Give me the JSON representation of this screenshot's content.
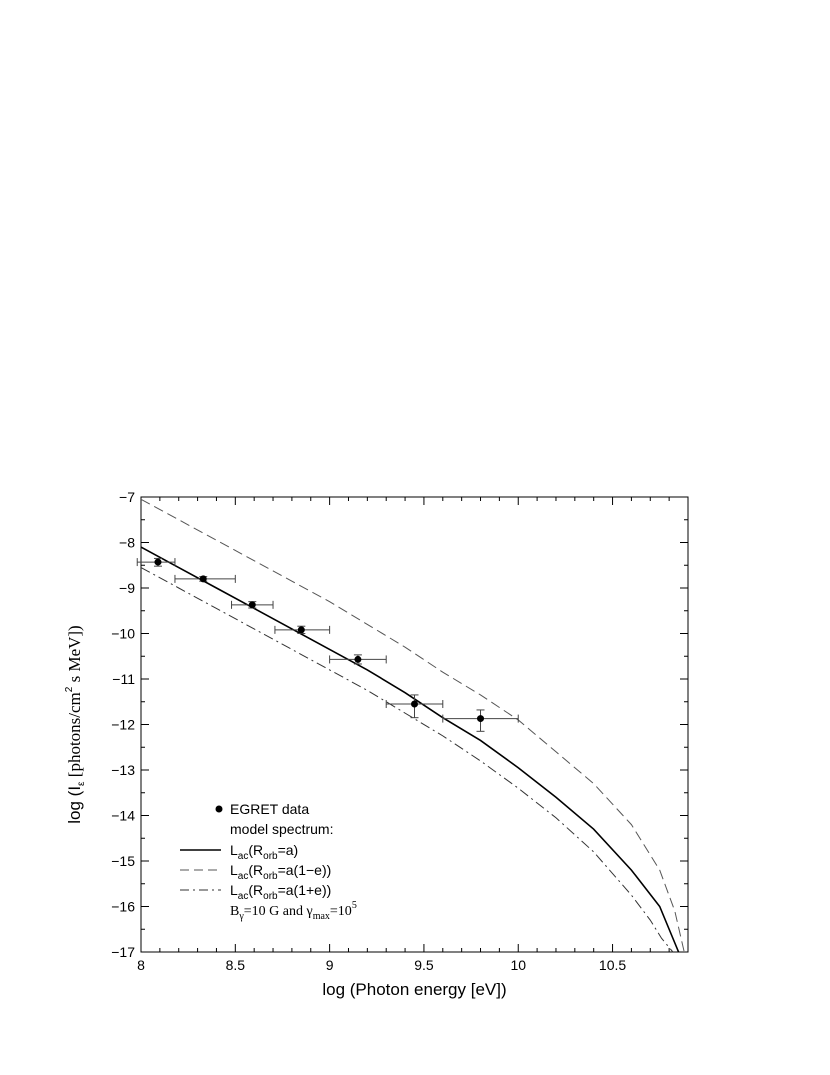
{
  "chart_data": {
    "type": "line",
    "title": "",
    "xlabel": "log (Photon energy [eV])",
    "ylabel": "log (Iε [photons/cm2 s MeV])",
    "xlim": [
      8,
      10.9
    ],
    "ylim": [
      -17,
      -7
    ],
    "xticks": [
      8,
      8.5,
      9,
      9.5,
      10,
      10.5
    ],
    "xtick_labels": [
      "8",
      "8.5",
      "9",
      "9.5",
      "10",
      "10.5"
    ],
    "yticks": [
      -17,
      -16,
      -15,
      -14,
      -13,
      -12,
      -11,
      -10,
      -9,
      -8,
      -7
    ],
    "ytick_labels": [
      "−17",
      "−16",
      "−15",
      "−14",
      "−13",
      "−12",
      "−11",
      "−10",
      "−9",
      "−8",
      "−7"
    ],
    "grid": false,
    "legend_position": "bottom-left",
    "ylabel_parts": {
      "prefix": "log (I",
      "sub": "ε",
      "mid": " [photons/cm",
      "sup": "2",
      "suffix": " s MeV])"
    },
    "points": {
      "name": "EGRET data",
      "x": [
        8.09,
        8.33,
        8.59,
        8.85,
        9.15,
        9.45,
        9.8
      ],
      "y": [
        -8.43,
        -8.8,
        -9.37,
        -9.92,
        -10.57,
        -11.55,
        -11.87
      ],
      "x_err": [
        [
          7.98,
          8.18
        ],
        [
          8.18,
          8.5
        ],
        [
          8.48,
          8.7
        ],
        [
          8.71,
          9.0
        ],
        [
          9.0,
          9.3
        ],
        [
          9.3,
          9.6
        ],
        [
          9.6,
          10.0
        ]
      ],
      "y_err": [
        [
          -8.35,
          -8.52
        ],
        [
          -8.75,
          -8.85
        ],
        [
          -9.3,
          -9.44
        ],
        [
          -9.84,
          -10.0
        ],
        [
          -10.47,
          -10.67
        ],
        [
          -11.35,
          -11.85
        ],
        [
          -11.68,
          -12.15
        ]
      ]
    },
    "series": [
      {
        "name": "Lac(Rorb=a)",
        "style": "solid",
        "x": [
          8.0,
          8.2,
          8.4,
          8.6,
          8.8,
          9.0,
          9.2,
          9.4,
          9.6,
          9.8,
          10.0,
          10.2,
          10.4,
          10.6,
          10.75,
          10.8,
          10.85
        ],
        "y": [
          -8.1,
          -8.55,
          -9.0,
          -9.45,
          -9.9,
          -10.35,
          -10.8,
          -11.3,
          -11.85,
          -12.35,
          -12.95,
          -13.6,
          -14.3,
          -15.2,
          -16.0,
          -16.5,
          -17.0
        ]
      },
      {
        "name": "Lac(Rorb=a(1−e))",
        "style": "dashed",
        "x": [
          8.0,
          8.2,
          8.4,
          8.6,
          8.8,
          9.0,
          9.2,
          9.4,
          9.6,
          9.8,
          10.0,
          10.2,
          10.4,
          10.6,
          10.75,
          10.83,
          10.88
        ],
        "y": [
          -7.05,
          -7.5,
          -7.95,
          -8.4,
          -8.85,
          -9.3,
          -9.8,
          -10.3,
          -10.85,
          -11.35,
          -11.9,
          -12.6,
          -13.3,
          -14.2,
          -15.2,
          -16.1,
          -17.0
        ]
      },
      {
        "name": "Lac(Rorb=a(1+e))",
        "style": "dashdot",
        "x": [
          8.0,
          8.2,
          8.4,
          8.6,
          8.8,
          9.0,
          9.2,
          9.4,
          9.6,
          9.8,
          10.0,
          10.2,
          10.4,
          10.6,
          10.7,
          10.76,
          10.82
        ],
        "y": [
          -8.55,
          -9.0,
          -9.45,
          -9.9,
          -10.35,
          -10.8,
          -11.25,
          -11.75,
          -12.25,
          -12.8,
          -13.4,
          -14.05,
          -14.8,
          -15.75,
          -16.3,
          -16.7,
          -17.0
        ]
      }
    ],
    "legend": {
      "points_label": "EGRET data",
      "header": "model spectrum:",
      "entries": [
        {
          "style": "solid",
          "main": "L",
          "sub1": "ac",
          "mid": "(R",
          "sub2": "orb",
          "tail": "=a)"
        },
        {
          "style": "dashed",
          "main": "L",
          "sub1": "ac",
          "mid": "(R",
          "sub2": "orb",
          "tail": "=a(1−e))"
        },
        {
          "style": "dashdot",
          "main": "L",
          "sub1": "ac",
          "mid": "(R",
          "sub2": "orb",
          "tail": "=a(1+e))"
        }
      ],
      "params": {
        "b": "B",
        "b_sub": "γ",
        "b_val": "=10 G and ",
        "g": "γ",
        "g_sub": "max",
        "g_val": "=10",
        "g_sup": "5"
      }
    }
  }
}
